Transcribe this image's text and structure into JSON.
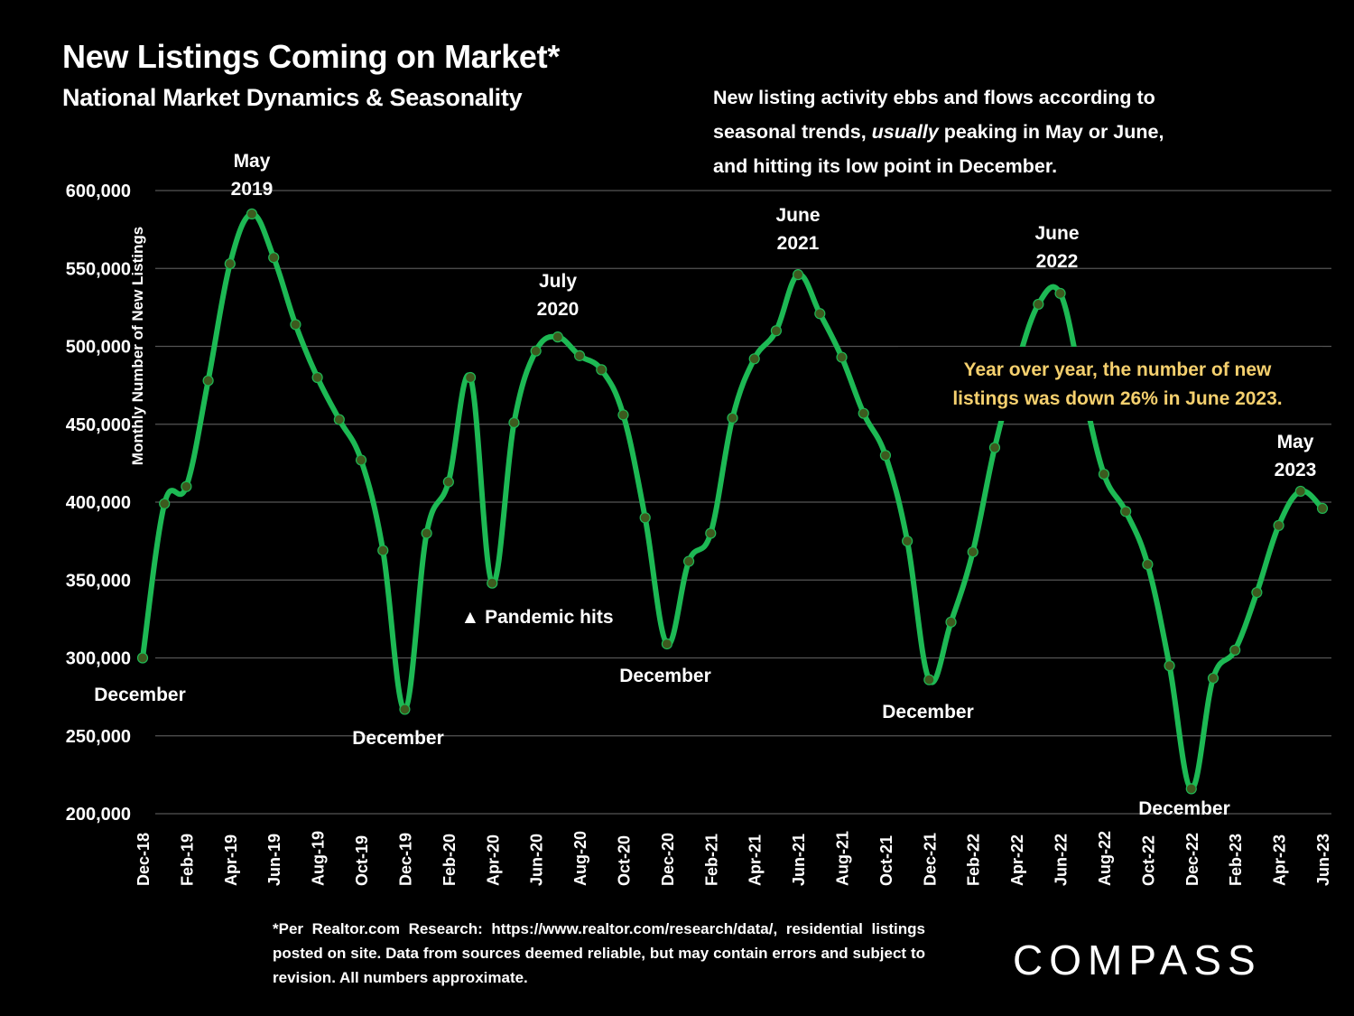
{
  "header": {
    "title": "New Listings Coming on Market*",
    "subtitle": "National Market Dynamics & Seasonality"
  },
  "description": {
    "part1": "New listing activity ebbs and flows according to seasonal trends, ",
    "italic": "usually",
    "part2": " peaking in May or June, and hitting its low point in December."
  },
  "footnote": "*Per Realtor.com Research: https://www.realtor.com/research/data/, residential listings posted on site. Data from sources deemed reliable, but may contain errors and subject to revision. All numbers approximate.",
  "brand": {
    "logo_text": "COMPASS"
  },
  "colors": {
    "background": "#000000",
    "line": "#1DB954",
    "marker_fill": "#3D5A1E",
    "gridline": "#555555",
    "callout_text": "#F5D06E",
    "text": "#FFFFFF"
  },
  "chart_data": {
    "type": "line",
    "title": "New Listings Coming on Market*",
    "subtitle": "National Market Dynamics & Seasonality",
    "xlabel": "",
    "ylabel": "Monthly Number of New Listings",
    "ylim": [
      200000,
      600000
    ],
    "yticks": [
      200000,
      250000,
      300000,
      350000,
      400000,
      450000,
      500000,
      550000,
      600000
    ],
    "ytick_labels": [
      "200,000",
      "250,000",
      "300,000",
      "350,000",
      "400,000",
      "450,000",
      "500,000",
      "550,000",
      "600,000"
    ],
    "grid": true,
    "legend": "none",
    "x": [
      "Dec-18",
      "Jan-19",
      "Feb-19",
      "Mar-19",
      "Apr-19",
      "May-19",
      "Jun-19",
      "Jul-19",
      "Aug-19",
      "Sep-19",
      "Oct-19",
      "Nov-19",
      "Dec-19",
      "Jan-20",
      "Feb-20",
      "Mar-20",
      "Apr-20",
      "May-20",
      "Jun-20",
      "Jul-20",
      "Aug-20",
      "Sep-20",
      "Oct-20",
      "Nov-20",
      "Dec-20",
      "Jan-21",
      "Feb-21",
      "Mar-21",
      "Apr-21",
      "May-21",
      "Jun-21",
      "Jul-21",
      "Aug-21",
      "Sep-21",
      "Oct-21",
      "Nov-21",
      "Dec-21",
      "Jan-22",
      "Feb-22",
      "Mar-22",
      "Apr-22",
      "May-22",
      "Jun-22",
      "Jul-22",
      "Aug-22",
      "Sep-22",
      "Oct-22",
      "Nov-22",
      "Dec-22",
      "Jan-23",
      "Feb-23",
      "Mar-23",
      "Apr-23",
      "May-23",
      "Jun-23"
    ],
    "xtick_labels": [
      "Dec-18",
      "Feb-19",
      "Apr-19",
      "Jun-19",
      "Aug-19",
      "Oct-19",
      "Dec-19",
      "Feb-20",
      "Apr-20",
      "Jun-20",
      "Aug-20",
      "Oct-20",
      "Dec-20",
      "Feb-21",
      "Apr-21",
      "Jun-21",
      "Aug-21",
      "Oct-21",
      "Dec-21",
      "Feb-22",
      "Apr-22",
      "Jun-22",
      "Aug-22",
      "Oct-22",
      "Dec-22",
      "Feb-23",
      "Apr-23",
      "Jun-23"
    ],
    "series": [
      {
        "name": "New Listings",
        "values": [
          300000,
          399000,
          410000,
          478000,
          553000,
          585000,
          557000,
          514000,
          480000,
          453000,
          427000,
          369000,
          267000,
          380000,
          413000,
          480000,
          348000,
          451000,
          497000,
          506000,
          494000,
          485000,
          456000,
          390000,
          309000,
          362000,
          380000,
          454000,
          492000,
          510000,
          546000,
          521000,
          493000,
          457000,
          430000,
          375000,
          286000,
          323000,
          368000,
          435000,
          487000,
          527000,
          534000,
          475000,
          418000,
          394000,
          360000,
          295000,
          216000,
          287000,
          305000,
          342000,
          385000,
          407000,
          396000
        ]
      }
    ],
    "annotations": [
      {
        "id": "dec18",
        "lines": [
          "December"
        ],
        "at": "Dec-18",
        "position": "below"
      },
      {
        "id": "may19",
        "lines": [
          "May",
          "2019"
        ],
        "at": "May-19",
        "position": "above"
      },
      {
        "id": "dec19",
        "lines": [
          "December"
        ],
        "at": "Dec-19",
        "position": "below"
      },
      {
        "id": "pandemic",
        "lines": [
          "▲ Pandemic hits"
        ],
        "at": "Apr-20",
        "position": "below"
      },
      {
        "id": "jul20",
        "lines": [
          "July",
          "2020"
        ],
        "at": "Jul-20",
        "position": "above"
      },
      {
        "id": "dec20",
        "lines": [
          "December"
        ],
        "at": "Dec-20",
        "position": "below"
      },
      {
        "id": "jun21",
        "lines": [
          "June",
          "2021"
        ],
        "at": "Jun-21",
        "position": "above"
      },
      {
        "id": "dec21",
        "lines": [
          "December"
        ],
        "at": "Dec-21",
        "position": "below"
      },
      {
        "id": "jun22",
        "lines": [
          "June",
          "2022"
        ],
        "at": "Jun-22",
        "position": "above"
      },
      {
        "id": "dec22",
        "lines": [
          "December"
        ],
        "at": "Dec-22",
        "position": "below"
      },
      {
        "id": "may23",
        "lines": [
          "May",
          "2023"
        ],
        "at": "May-23",
        "position": "above"
      }
    ],
    "callout": {
      "lines": [
        "Year over year, the number of new",
        "listings was down 26% in June 2023."
      ]
    }
  }
}
